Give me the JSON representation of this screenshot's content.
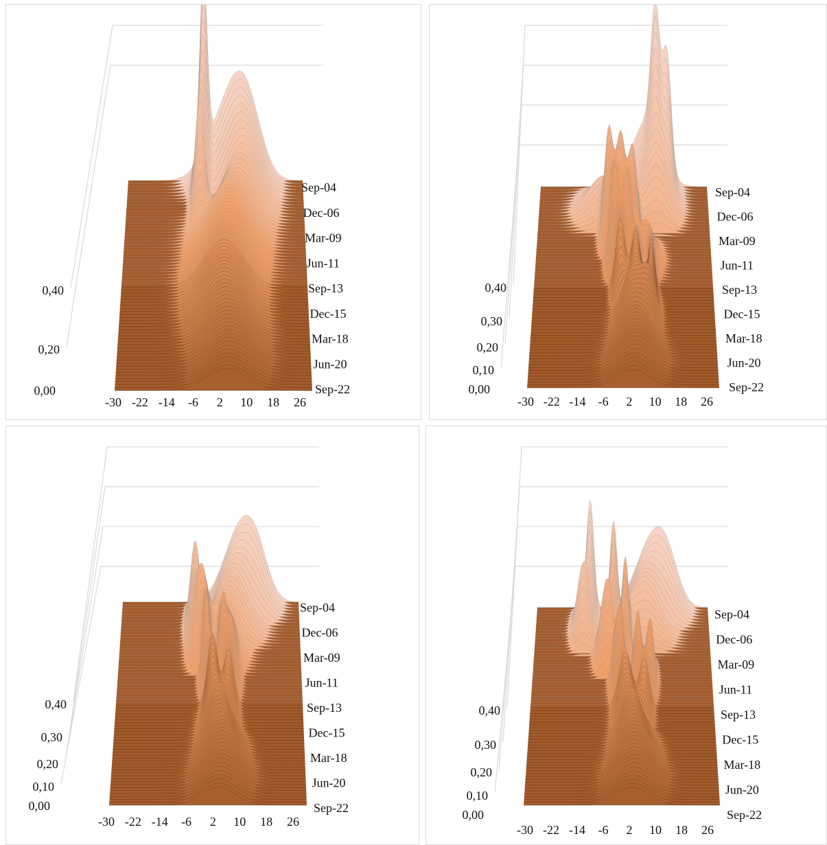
{
  "colors": {
    "floor": "#a45b2b",
    "floor_line": "#c98252",
    "ridge_early": "#f6d3c4",
    "ridge_mid": "#f0a06a",
    "ridge_late": "#a8602f",
    "grid": "#d9d9d9"
  },
  "chart_data": [
    {
      "type": "area",
      "x_ticks": [
        "-30",
        "-22",
        "-14",
        "-6",
        "2",
        "10",
        "18",
        "26"
      ],
      "date_ticks": [
        "Sep-04",
        "Dec-06",
        "Mar-09",
        "Jun-11",
        "Sep-13",
        "Dec-15",
        "Mar-18",
        "Jun-20",
        "Sep-22"
      ],
      "z_ticks": [
        "0,00",
        "0,20",
        "0,40"
      ],
      "zlim": [
        0,
        0.8
      ],
      "grid": true,
      "series": [
        {
          "date": "Sep-04",
          "peaks": [
            {
              "x": -5,
              "h": 0.5,
              "w": 1.2
            },
            {
              "x": 2,
              "h": 0.16,
              "w": 6
            },
            {
              "x": 9,
              "h": 0.2,
              "w": 5
            }
          ]
        },
        {
          "date": "Dec-06",
          "peaks": [
            {
              "x": -6,
              "h": 0.3,
              "w": 1.5
            },
            {
              "x": 8,
              "h": 0.18,
              "w": 5
            }
          ]
        },
        {
          "date": "Mar-09",
          "peaks": [
            {
              "x": 4,
              "h": 0.15,
              "w": 6
            }
          ]
        },
        {
          "date": "Jun-11",
          "peaks": [
            {
              "x": 3,
              "h": 0.14,
              "w": 6
            }
          ]
        },
        {
          "date": "Sep-13",
          "peaks": [
            {
              "x": 2,
              "h": 0.13,
              "w": 6
            }
          ]
        },
        {
          "date": "Dec-15",
          "peaks": [
            {
              "x": 2,
              "h": 0.12,
              "w": 6
            }
          ]
        },
        {
          "date": "Mar-18",
          "peaks": [
            {
              "x": 3,
              "h": 0.1,
              "w": 6
            }
          ]
        },
        {
          "date": "Jun-20",
          "peaks": [
            {
              "x": 4,
              "h": 0.08,
              "w": 6
            }
          ]
        },
        {
          "date": "Sep-22",
          "peaks": [
            {
              "x": 3,
              "h": 0.06,
              "w": 6
            }
          ]
        }
      ]
    },
    {
      "type": "area",
      "x_ticks": [
        "-30",
        "-22",
        "-14",
        "-6",
        "2",
        "10",
        "18",
        "26"
      ],
      "date_ticks": [
        "Sep-04",
        "Dec-06",
        "Mar-09",
        "Jun-11",
        "Sep-13",
        "Dec-15",
        "Mar-18",
        "Jun-20",
        "Sep-22"
      ],
      "z_ticks": [
        "0,00",
        "0,10",
        "0,20",
        "0,30",
        "0,40"
      ],
      "zlim": [
        0,
        0.8
      ],
      "grid": true,
      "series": [
        {
          "date": "Sep-04",
          "peaks": [
            {
              "x": 10,
              "h": 0.35,
              "w": 1.5
            },
            {
              "x": 14,
              "h": 0.3,
              "w": 1.5
            },
            {
              "x": 7,
              "h": 0.18,
              "w": 5
            }
          ]
        },
        {
          "date": "Dec-06",
          "peaks": [
            {
              "x": 10,
              "h": 0.2,
              "w": 4
            },
            {
              "x": -8,
              "h": 0.1,
              "w": 5
            }
          ]
        },
        {
          "date": "Mar-09",
          "peaks": [
            {
              "x": -6,
              "h": 0.3,
              "w": 1.5
            },
            {
              "x": -2,
              "h": 0.28,
              "w": 1.5
            },
            {
              "x": 2,
              "h": 0.25,
              "w": 1.5
            }
          ]
        },
        {
          "date": "Jun-11",
          "peaks": [
            {
              "x": -4,
              "h": 0.26,
              "w": 1.5
            },
            {
              "x": 0,
              "h": 0.22,
              "w": 1.5
            },
            {
              "x": 6,
              "h": 0.12,
              "w": 3
            }
          ]
        },
        {
          "date": "Sep-13",
          "peaks": [
            {
              "x": -2,
              "h": 0.2,
              "w": 1.5
            },
            {
              "x": 3,
              "h": 0.16,
              "w": 1.5
            },
            {
              "x": 8,
              "h": 0.14,
              "w": 1
            }
          ]
        },
        {
          "date": "Dec-15",
          "peaks": [
            {
              "x": 2,
              "h": 0.12,
              "w": 3
            },
            {
              "x": 7,
              "h": 0.1,
              "w": 2
            }
          ]
        },
        {
          "date": "Mar-18",
          "peaks": [
            {
              "x": 3,
              "h": 0.09,
              "w": 4
            }
          ]
        },
        {
          "date": "Jun-20",
          "peaks": [
            {
              "x": 3,
              "h": 0.08,
              "w": 5
            }
          ]
        },
        {
          "date": "Sep-22",
          "peaks": [
            {
              "x": 2,
              "h": 0.05,
              "w": 5
            }
          ]
        }
      ]
    },
    {
      "type": "area",
      "x_ticks": [
        "-30",
        "-22",
        "-14",
        "-6",
        "2",
        "10",
        "18",
        "26"
      ],
      "date_ticks": [
        "Sep-04",
        "Dec-06",
        "Mar-09",
        "Jun-11",
        "Sep-13",
        "Dec-15",
        "Mar-18",
        "Jun-20",
        "Sep-22"
      ],
      "z_ticks": [
        "0,00",
        "0,10",
        "0,20",
        "0,30",
        "0,40"
      ],
      "zlim": [
        0,
        0.8
      ],
      "grid": true,
      "series": [
        {
          "date": "Sep-04",
          "peaks": [
            {
              "x": 8,
              "h": 0.18,
              "w": 5
            },
            {
              "x": 14,
              "h": 0.12,
              "w": 4
            }
          ]
        },
        {
          "date": "Dec-06",
          "peaks": [
            {
              "x": -6,
              "h": 0.24,
              "w": 1.5
            },
            {
              "x": 6,
              "h": 0.16,
              "w": 5
            }
          ]
        },
        {
          "date": "Mar-09",
          "peaks": [
            {
              "x": -4,
              "h": 0.22,
              "w": 2
            },
            {
              "x": 3,
              "h": 0.14,
              "w": 4
            }
          ]
        },
        {
          "date": "Jun-11",
          "peaks": [
            {
              "x": -2,
              "h": 0.24,
              "w": 1.2
            },
            {
              "x": 3,
              "h": 0.22,
              "w": 1.2
            },
            {
              "x": 6,
              "h": 0.16,
              "w": 1.5
            }
          ]
        },
        {
          "date": "Sep-13",
          "peaks": [
            {
              "x": 0,
              "h": 0.2,
              "w": 1.5
            },
            {
              "x": 5,
              "h": 0.16,
              "w": 1.5
            }
          ]
        },
        {
          "date": "Dec-15",
          "peaks": [
            {
              "x": 2,
              "h": 0.13,
              "w": 3
            }
          ]
        },
        {
          "date": "Mar-18",
          "peaks": [
            {
              "x": 3,
              "h": 0.1,
              "w": 4
            }
          ]
        },
        {
          "date": "Jun-20",
          "peaks": [
            {
              "x": 3,
              "h": 0.08,
              "w": 5
            }
          ]
        },
        {
          "date": "Sep-22",
          "peaks": [
            {
              "x": 2,
              "h": 0.05,
              "w": 5
            }
          ]
        }
      ]
    },
    {
      "type": "area",
      "x_ticks": [
        "-30",
        "-22",
        "-14",
        "-6",
        "2",
        "10",
        "18",
        "26"
      ],
      "date_ticks": [
        "Sep-04",
        "Dec-06",
        "Mar-09",
        "Jun-11",
        "Sep-13",
        "Dec-15",
        "Mar-18",
        "Jun-20",
        "Sep-22"
      ],
      "z_ticks": [
        "0,00",
        "0,10",
        "0,20",
        "0,30",
        "0,40"
      ],
      "zlim": [
        0,
        0.8
      ],
      "grid": true,
      "series": [
        {
          "date": "Sep-04",
          "peaks": [
            {
              "x": -12,
              "h": 0.3,
              "w": 1.2
            },
            {
              "x": 8,
              "h": 0.16,
              "w": 5
            },
            {
              "x": 14,
              "h": 0.12,
              "w": 4
            }
          ]
        },
        {
          "date": "Dec-06",
          "peaks": [
            {
              "x": -14,
              "h": 0.2,
              "w": 2
            },
            {
              "x": -4,
              "h": 0.3,
              "w": 1.2
            },
            {
              "x": 6,
              "h": 0.15,
              "w": 5
            }
          ]
        },
        {
          "date": "Mar-09",
          "peaks": [
            {
              "x": -6,
              "h": 0.22,
              "w": 2
            },
            {
              "x": 0,
              "h": 0.28,
              "w": 1.2
            }
          ]
        },
        {
          "date": "Jun-11",
          "peaks": [
            {
              "x": -2,
              "h": 0.22,
              "w": 1.5
            },
            {
              "x": 4,
              "h": 0.2,
              "w": 1.2
            },
            {
              "x": 8,
              "h": 0.18,
              "w": 1.2
            }
          ]
        },
        {
          "date": "Sep-13",
          "peaks": [
            {
              "x": 0,
              "h": 0.16,
              "w": 2
            },
            {
              "x": 6,
              "h": 0.14,
              "w": 1.5
            }
          ]
        },
        {
          "date": "Dec-15",
          "peaks": [
            {
              "x": 2,
              "h": 0.12,
              "w": 3
            }
          ]
        },
        {
          "date": "Mar-18",
          "peaks": [
            {
              "x": 3,
              "h": 0.1,
              "w": 4
            }
          ]
        },
        {
          "date": "Jun-20",
          "peaks": [
            {
              "x": 3,
              "h": 0.08,
              "w": 5
            }
          ]
        },
        {
          "date": "Sep-22",
          "peaks": [
            {
              "x": 2,
              "h": 0.05,
              "w": 5
            }
          ]
        }
      ]
    }
  ]
}
